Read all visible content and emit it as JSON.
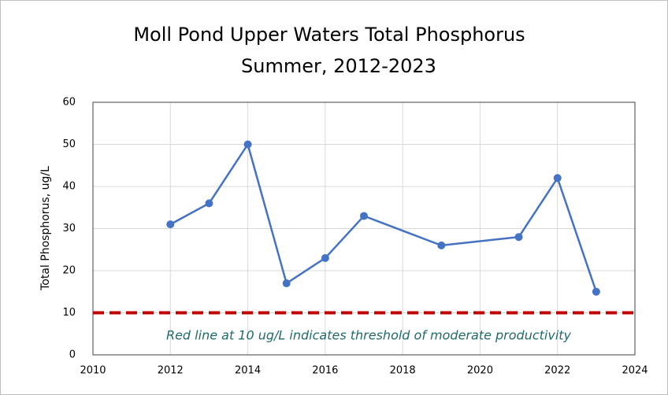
{
  "chart_data": {
    "type": "line",
    "title": "Moll Pond Upper Waters Total Phosphorus",
    "subtitle": "Summer, 2012-2023",
    "y_label": "Total Phosphorus, ug/L",
    "annotation": "Red line at 10 ug/L indicates threshold of moderate productivity",
    "x": [
      2012,
      2013,
      2014,
      2015,
      2016,
      2017,
      2019,
      2021,
      2022,
      2023
    ],
    "values": [
      31,
      36,
      50,
      17,
      23,
      33,
      26,
      28,
      42,
      15
    ],
    "color": "#4472c4",
    "threshold": {
      "value": 10,
      "color": "#c00000"
    },
    "xlim": [
      2010,
      2024
    ],
    "xticks": [
      2010,
      2012,
      2014,
      2016,
      2018,
      2020,
      2022,
      2024
    ],
    "ylim": [
      0,
      60
    ],
    "yticks": [
      0,
      10,
      20,
      30,
      40,
      50,
      60
    ],
    "grid": true
  }
}
